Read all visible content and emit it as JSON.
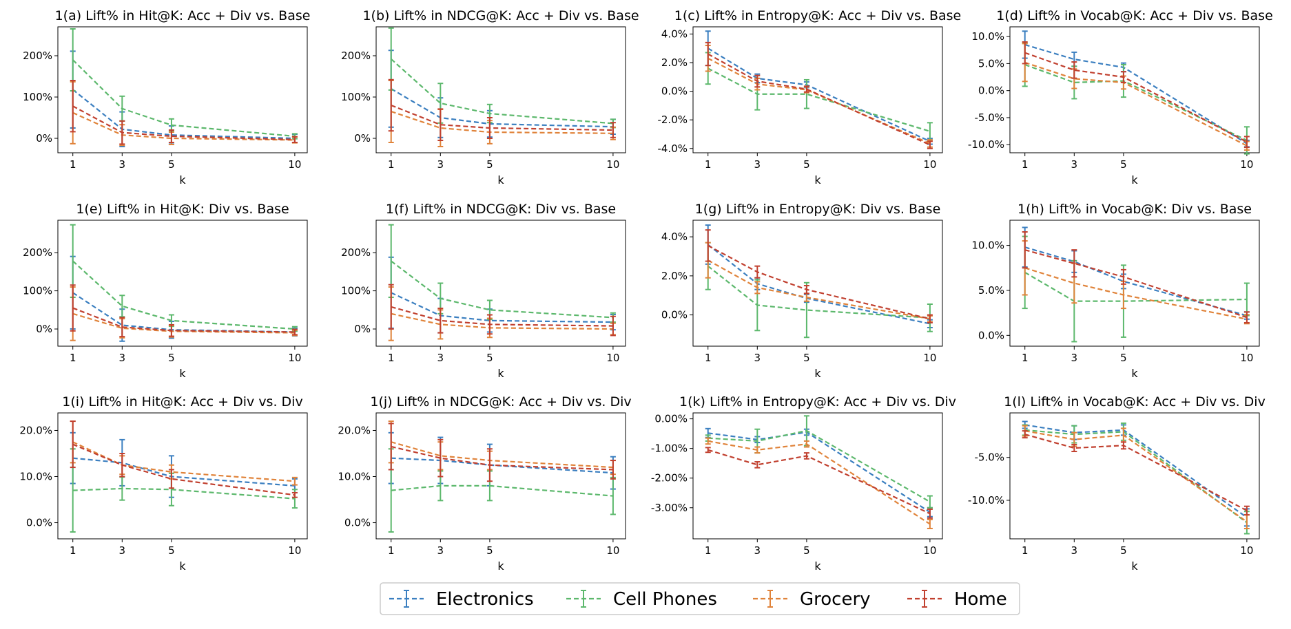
{
  "colors": {
    "Electronics": "#3b7fc0",
    "Cell Phones": "#5cb86c",
    "Grocery": "#e0833a",
    "Home": "#c1402f"
  },
  "legend": [
    "Electronics",
    "Cell Phones",
    "Grocery",
    "Home"
  ],
  "chart_data": [
    {
      "type": "line",
      "title": "1(a) Lift% in Hit@K: Acc + Div vs. Base",
      "xlabel": "k",
      "x": [
        1,
        3,
        5,
        10
      ],
      "ylim": [
        -35,
        270
      ],
      "yticks": [
        0,
        100,
        200
      ],
      "ydec": 0,
      "series": [
        {
          "name": "Electronics",
          "values": [
            118,
            22,
            8,
            0
          ],
          "err": [
            93,
            42,
            22,
            10
          ]
        },
        {
          "name": "Cell Phones",
          "values": [
            190,
            72,
            32,
            5
          ],
          "err": [
            75,
            30,
            15,
            6
          ]
        },
        {
          "name": "Grocery",
          "values": [
            62,
            8,
            0,
            -4
          ],
          "err": [
            75,
            25,
            15,
            7
          ]
        },
        {
          "name": "Home",
          "values": [
            78,
            14,
            5,
            -3
          ],
          "err": [
            62,
            28,
            15,
            7
          ]
        }
      ]
    },
    {
      "type": "line",
      "title": "1(b) Lift% in NDCG@K: Acc + Div vs. Base",
      "xlabel": "k",
      "x": [
        1,
        3,
        5,
        10
      ],
      "ylim": [
        -35,
        270
      ],
      "yticks": [
        0,
        100,
        200
      ],
      "ydec": 0,
      "series": [
        {
          "name": "Electronics",
          "values": [
            120,
            50,
            35,
            28
          ],
          "err": [
            93,
            48,
            32,
            18
          ]
        },
        {
          "name": "Cell Phones",
          "values": [
            192,
            85,
            60,
            36
          ],
          "err": [
            75,
            48,
            22,
            10
          ]
        },
        {
          "name": "Grocery",
          "values": [
            65,
            25,
            15,
            12
          ],
          "err": [
            75,
            45,
            28,
            15
          ]
        },
        {
          "name": "Home",
          "values": [
            80,
            33,
            25,
            20
          ],
          "err": [
            62,
            38,
            25,
            18
          ]
        }
      ]
    },
    {
      "type": "line",
      "title": "1(c) Lift% in Entropy@K: Acc + Div vs. Base",
      "xlabel": "k",
      "x": [
        1,
        3,
        5,
        10
      ],
      "ylim": [
        -4.3,
        4.5
      ],
      "yticks": [
        -4,
        -2,
        0,
        2,
        4
      ],
      "ydec": 1,
      "series": [
        {
          "name": "Electronics",
          "values": [
            3.0,
            0.9,
            0.45,
            -3.5
          ],
          "err": [
            1.2,
            0.3,
            0.2,
            0.2
          ]
        },
        {
          "name": "Cell Phones",
          "values": [
            1.6,
            -0.2,
            -0.2,
            -2.8
          ],
          "err": [
            1.1,
            1.1,
            1.0,
            0.6
          ]
        },
        {
          "name": "Grocery",
          "values": [
            2.3,
            0.5,
            0.1,
            -3.65
          ],
          "err": [
            0.9,
            0.4,
            0.2,
            0.25
          ]
        },
        {
          "name": "Home",
          "values": [
            2.6,
            0.7,
            0.15,
            -3.75
          ],
          "err": [
            0.8,
            0.4,
            0.2,
            0.25
          ]
        }
      ]
    },
    {
      "type": "line",
      "title": "1(d) Lift% in Vocab@K: Acc + Div vs. Base",
      "xlabel": "k",
      "x": [
        1,
        3,
        5,
        10
      ],
      "ylim": [
        -11.5,
        11.8
      ],
      "yticks": [
        -10,
        -5,
        0,
        5,
        10
      ],
      "ydec": 1,
      "series": [
        {
          "name": "Electronics",
          "values": [
            8.5,
            5.8,
            4.3,
            -9.8
          ],
          "err": [
            2.5,
            1.3,
            0.8,
            0.6
          ]
        },
        {
          "name": "Cell Phones",
          "values": [
            4.8,
            1.5,
            1.8,
            -9.2
          ],
          "err": [
            4.0,
            3.0,
            3.0,
            2.5
          ]
        },
        {
          "name": "Grocery",
          "values": [
            5.2,
            2.2,
            1.5,
            -10.2
          ],
          "err": [
            3.5,
            1.8,
            1.2,
            0.8
          ]
        },
        {
          "name": "Home",
          "values": [
            7.0,
            3.8,
            2.5,
            -9.5
          ],
          "err": [
            2.0,
            1.5,
            1.0,
            1.0
          ]
        }
      ]
    },
    {
      "type": "line",
      "title": "1(e) Lift% in Hit@K: Div vs. Base",
      "xlabel": "k",
      "x": [
        1,
        3,
        5,
        10
      ],
      "ylim": [
        -45,
        285
      ],
      "yticks": [
        0,
        100,
        200
      ],
      "ydec": 0,
      "series": [
        {
          "name": "Electronics",
          "values": [
            95,
            10,
            -2,
            -8
          ],
          "err": [
            95,
            42,
            22,
            10
          ]
        },
        {
          "name": "Cell Phones",
          "values": [
            178,
            60,
            22,
            0
          ],
          "err": [
            95,
            28,
            15,
            6
          ]
        },
        {
          "name": "Grocery",
          "values": [
            40,
            2,
            -6,
            -10
          ],
          "err": [
            70,
            25,
            15,
            7
          ]
        },
        {
          "name": "Home",
          "values": [
            55,
            5,
            -4,
            -8
          ],
          "err": [
            60,
            25,
            15,
            7
          ]
        }
      ]
    },
    {
      "type": "line",
      "title": "1(f) Lift% in NDCG@K: Div vs. Base",
      "xlabel": "k",
      "x": [
        1,
        3,
        5,
        10
      ],
      "ylim": [
        -45,
        285
      ],
      "yticks": [
        0,
        100,
        200
      ],
      "ydec": 0,
      "series": [
        {
          "name": "Electronics",
          "values": [
            95,
            35,
            22,
            18
          ],
          "err": [
            93,
            45,
            30,
            20
          ]
        },
        {
          "name": "Cell Phones",
          "values": [
            178,
            80,
            50,
            30
          ],
          "err": [
            95,
            40,
            25,
            12
          ]
        },
        {
          "name": "Grocery",
          "values": [
            40,
            12,
            3,
            0
          ],
          "err": [
            70,
            38,
            25,
            15
          ]
        },
        {
          "name": "Home",
          "values": [
            58,
            22,
            12,
            8
          ],
          "err": [
            58,
            32,
            25,
            25
          ]
        }
      ]
    },
    {
      "type": "line",
      "title": "1(g) Lift% in Entropy@K: Div vs. Base",
      "xlabel": "k",
      "x": [
        1,
        3,
        5,
        10
      ],
      "ylim": [
        -1.6,
        4.85
      ],
      "yticks": [
        0,
        2,
        4
      ],
      "ydec": 1,
      "series": [
        {
          "name": "Electronics",
          "values": [
            3.6,
            1.6,
            0.85,
            -0.45
          ],
          "err": [
            1.0,
            0.3,
            0.2,
            0.2
          ]
        },
        {
          "name": "Cell Phones",
          "values": [
            2.5,
            0.5,
            0.25,
            -0.15
          ],
          "err": [
            1.2,
            1.3,
            1.4,
            0.7
          ]
        },
        {
          "name": "Grocery",
          "values": [
            2.8,
            1.4,
            0.9,
            -0.2
          ],
          "err": [
            0.9,
            0.3,
            0.2,
            0.15
          ]
        },
        {
          "name": "Home",
          "values": [
            3.55,
            2.2,
            1.3,
            -0.2
          ],
          "err": [
            0.8,
            0.3,
            0.2,
            0.2
          ]
        }
      ]
    },
    {
      "type": "line",
      "title": "1(h) Lift% in Vocab@K: Div vs. Base",
      "xlabel": "k",
      "x": [
        1,
        3,
        5,
        10
      ],
      "ylim": [
        -1.2,
        12.8
      ],
      "yticks": [
        0,
        5,
        10
      ],
      "ydec": 1,
      "series": [
        {
          "name": "Electronics",
          "values": [
            9.8,
            8.2,
            6.0,
            2.2
          ],
          "err": [
            2.2,
            1.2,
            0.8,
            0.4
          ]
        },
        {
          "name": "Cell Phones",
          "values": [
            7.0,
            3.8,
            3.8,
            4.0
          ],
          "err": [
            4.0,
            4.5,
            4.0,
            1.8
          ]
        },
        {
          "name": "Grocery",
          "values": [
            7.5,
            5.8,
            4.5,
            1.8
          ],
          "err": [
            3.0,
            2.2,
            1.5,
            0.5
          ]
        },
        {
          "name": "Home",
          "values": [
            9.5,
            8.0,
            6.5,
            2.0
          ],
          "err": [
            2.0,
            1.5,
            0.8,
            0.6
          ]
        }
      ]
    },
    {
      "type": "line",
      "title": "1(i) Lift% in Hit@K: Acc + Div vs. Div",
      "xlabel": "k",
      "x": [
        1,
        3,
        5,
        10
      ],
      "ylim": [
        -3.5,
        23.8
      ],
      "yticks": [
        0,
        10,
        20
      ],
      "ydec": 1,
      "series": [
        {
          "name": "Electronics",
          "values": [
            14,
            13,
            10,
            8
          ],
          "err": [
            5.5,
            5.0,
            4.5,
            1.5
          ]
        },
        {
          "name": "Cell Phones",
          "values": [
            7,
            7.4,
            7.2,
            5.2
          ],
          "err": [
            9,
            2.5,
            3.5,
            2.0
          ]
        },
        {
          "name": "Grocery",
          "values": [
            17.5,
            12.5,
            11,
            9
          ],
          "err": [
            4.5,
            2.0,
            1.5,
            0.8
          ]
        },
        {
          "name": "Home",
          "values": [
            17,
            12.5,
            9.5,
            6
          ],
          "err": [
            5,
            2.5,
            2.0,
            0.5
          ]
        }
      ]
    },
    {
      "type": "line",
      "title": "1(j) Lift% in NDCG@K: Acc + Div vs. Div",
      "xlabel": "k",
      "x": [
        1,
        3,
        5,
        10
      ],
      "ylim": [
        -3.5,
        23.8
      ],
      "yticks": [
        0,
        10,
        20
      ],
      "ydec": 1,
      "series": [
        {
          "name": "Electronics",
          "values": [
            14,
            13.5,
            12.5,
            10.8
          ],
          "err": [
            5.5,
            5.0,
            4.5,
            3.5
          ]
        },
        {
          "name": "Cell Phones",
          "values": [
            7,
            8,
            8,
            5.8
          ],
          "err": [
            9,
            3.2,
            3.2,
            4.0
          ]
        },
        {
          "name": "Grocery",
          "values": [
            17.5,
            14.5,
            13.5,
            12
          ],
          "err": [
            4.5,
            3.0,
            2.0,
            1.5
          ]
        },
        {
          "name": "Home",
          "values": [
            16.5,
            14,
            12.5,
            11.5
          ],
          "err": [
            5,
            4.0,
            3.5,
            2.0
          ]
        }
      ]
    },
    {
      "type": "line",
      "title": "1(k) Lift% in Entropy@K: Acc + Div vs. Div",
      "xlabel": "k",
      "x": [
        1,
        3,
        5,
        10
      ],
      "ylim": [
        -4.05,
        0.2
      ],
      "yticks": [
        -3,
        -2,
        -1,
        0
      ],
      "ydec": 2,
      "series": [
        {
          "name": "Electronics",
          "values": [
            -0.48,
            -0.7,
            -0.45,
            -3.15
          ],
          "err": [
            0.15,
            0.1,
            0.1,
            0.15
          ]
        },
        {
          "name": "Cell Phones",
          "values": [
            -0.65,
            -0.75,
            -0.4,
            -2.8
          ],
          "err": [
            0.1,
            0.4,
            0.5,
            0.2
          ]
        },
        {
          "name": "Grocery",
          "values": [
            -0.75,
            -1.05,
            -0.85,
            -3.55
          ],
          "err": [
            0.1,
            0.1,
            0.1,
            0.15
          ]
        },
        {
          "name": "Home",
          "values": [
            -1.05,
            -1.55,
            -1.25,
            -3.2
          ],
          "err": [
            0.08,
            0.1,
            0.1,
            0.15
          ]
        }
      ]
    },
    {
      "type": "line",
      "title": "1(l) Lift% in Vocab@K: Acc + Div vs. Div",
      "xlabel": "k",
      "x": [
        1,
        3,
        5,
        10
      ],
      "ylim": [
        -14.5,
        0.2
      ],
      "yticks": [
        -10,
        -5
      ],
      "ydec": 1,
      "series": [
        {
          "name": "Electronics",
          "values": [
            -1.2,
            -2.1,
            -1.8,
            -12.0
          ],
          "err": [
            0.4,
            0.8,
            0.6,
            1.0
          ]
        },
        {
          "name": "Cell Phones",
          "values": [
            -1.8,
            -2.3,
            -2.0,
            -12.6
          ],
          "err": [
            0.6,
            1.0,
            1.0,
            1.3
          ]
        },
        {
          "name": "Grocery",
          "values": [
            -1.9,
            -2.9,
            -2.4,
            -12.5
          ],
          "err": [
            0.6,
            0.8,
            0.8,
            0.8
          ]
        },
        {
          "name": "Home",
          "values": [
            -2.3,
            -3.9,
            -3.6,
            -11.2
          ],
          "err": [
            0.4,
            0.4,
            0.4,
            0.5
          ]
        }
      ]
    }
  ]
}
